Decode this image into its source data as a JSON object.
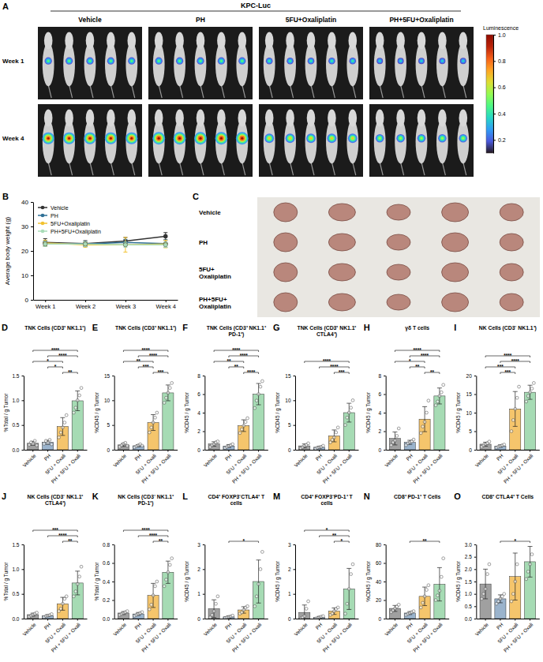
{
  "imaging": {
    "panel": "A",
    "header": "KPC-Luc",
    "groups": [
      "Vehicle",
      "PH",
      "5FU+Oxaliplatin",
      "PH+5FU+Oxaliplatin"
    ],
    "rows": [
      "Week 1",
      "Week 4"
    ],
    "signal": [
      [
        0.5,
        0.5,
        0.45,
        0.4
      ],
      [
        0.95,
        1.0,
        0.7,
        0.6
      ]
    ],
    "colorbar": {
      "title": "Luminescence",
      "lim": [
        0.1,
        1.0
      ],
      "ticks": [
        0.2,
        0.4,
        0.6,
        0.8,
        {
          "value": 1,
          "label": "1.0"
        }
      ]
    }
  },
  "tumor_photos": {
    "panel": "C",
    "rows": [
      "Vehicle",
      "PH",
      "5FU+ Oxaliplatin",
      "PH+5FU+ Oxaliplatin"
    ]
  },
  "chart_data": [
    {
      "panel": "B",
      "type": "line",
      "y_label": "Average body weight (g)",
      "categories": [
        "Week 1",
        "Week 2",
        "Week 3",
        "Week 4"
      ],
      "ylim": [
        0,
        40
      ],
      "yticks": [
        0,
        10,
        20,
        30,
        40
      ],
      "legend": "top-left",
      "marker": "circle",
      "series": [
        {
          "name": "Vehicle",
          "color": "#333333",
          "values": [
            23.5,
            23.0,
            24.0,
            26.0
          ],
          "errors": [
            1.5,
            1.2,
            1.5,
            1.5
          ]
        },
        {
          "name": "PH",
          "color": "#2f7096",
          "values": [
            23.0,
            22.8,
            23.5,
            23.0
          ],
          "errors": [
            1.0,
            1.0,
            1.2,
            1.5
          ]
        },
        {
          "name": "5FU+Oxaliplatin",
          "color": "#f2c230",
          "values": [
            23.2,
            22.5,
            22.5,
            22.8
          ],
          "errors": [
            1.2,
            1.0,
            3.0,
            1.5
          ]
        },
        {
          "name": "PH+5FU+Oxaliplatin",
          "color": "#a9dcb8",
          "values": [
            22.8,
            22.8,
            22.5,
            22.5
          ],
          "errors": [
            1.0,
            1.0,
            1.0,
            1.0
          ]
        }
      ]
    },
    {
      "panel": "D",
      "type": "bar",
      "title": "TNK Cells (CD3⁺ NK1.1⁺)",
      "y_label": "%Total / g Tumor",
      "categories": [
        "Vehicle",
        "PH",
        "5FU + Oxali",
        "PH + 5FU + Oxali"
      ],
      "colors": [
        "#a0a0a0",
        "#9ab3cc",
        "#f5c56c",
        "#a6dbb4"
      ],
      "values": [
        0.13,
        0.15,
        0.47,
        0.99
      ],
      "errors": [
        0.04,
        0.04,
        0.18,
        0.2
      ],
      "points": [
        [
          0.1,
          0.15,
          0.12,
          0.18,
          0.09
        ],
        [
          0.12,
          0.18,
          0.14,
          0.2,
          0.11
        ],
        [
          0.25,
          0.35,
          0.45,
          0.55,
          0.7
        ],
        [
          0.75,
          0.85,
          1.0,
          1.1,
          1.25
        ]
      ],
      "ylim": [
        0,
        1.5
      ],
      "yticks": [
        {
          "value": 0,
          "label": "0.0"
        },
        0.5,
        {
          "value": 1,
          "label": "1.0"
        },
        1.5
      ],
      "significance": [
        {
          "from": 2,
          "to": 3,
          "label": "**"
        },
        {
          "from": 1,
          "to": 2,
          "label": "*"
        },
        {
          "from": 0,
          "to": 2,
          "label": "*"
        },
        {
          "from": 1,
          "to": 3,
          "label": "****"
        },
        {
          "from": 0,
          "to": 3,
          "label": "****"
        }
      ]
    },
    {
      "panel": "E",
      "type": "bar",
      "title": "TNK Cells (CD3⁺ NK1.1⁺)",
      "y_label": "%CD45 / g Tumor",
      "categories": [
        "Vehicle",
        "PH",
        "5FU + Oxali",
        "PH + 5FU + Oxali"
      ],
      "colors": [
        "#a0a0a0",
        "#9ab3cc",
        "#f5c56c",
        "#a6dbb4"
      ],
      "values": [
        0.98,
        0.8,
        5.5,
        11.5
      ],
      "errors": [
        0.32,
        0.22,
        1.6,
        1.6
      ],
      "points": [
        [
          0.6,
          0.9,
          1.2,
          1.4,
          0.8
        ],
        [
          0.5,
          0.7,
          0.9,
          1.1,
          0.8
        ],
        [
          3.5,
          4.5,
          5.5,
          6.5,
          7.5
        ],
        [
          9.5,
          10.5,
          11.5,
          12.5,
          13.5
        ]
      ],
      "ylim": [
        0,
        15
      ],
      "yticks": [
        0,
        5,
        10,
        15
      ],
      "significance": [
        {
          "from": 2,
          "to": 3,
          "label": "***"
        },
        {
          "from": 1,
          "to": 2,
          "label": "***"
        },
        {
          "from": 0,
          "to": 2,
          "label": "**"
        },
        {
          "from": 1,
          "to": 3,
          "label": "****"
        },
        {
          "from": 0,
          "to": 3,
          "label": "****"
        }
      ]
    },
    {
      "panel": "F",
      "type": "bar",
      "title": "TNK Cells (CD3⁺ NK1.1⁺ PD-1⁺)",
      "y_label": "%CD45 / g Tumor",
      "categories": [
        "Vehicle",
        "PH",
        "5FU + Oxali",
        "PH + 5FU + Oxali"
      ],
      "colors": [
        "#a0a0a0",
        "#9ab3cc",
        "#f5c56c",
        "#a6dbb4"
      ],
      "values": [
        0.62,
        0.4,
        2.6,
        6.0
      ],
      "errors": [
        0.24,
        0.16,
        0.63,
        1.15
      ],
      "points": [
        [
          0.3,
          0.5,
          0.6,
          0.8,
          0.9
        ],
        [
          0.2,
          0.3,
          0.4,
          0.5,
          0.6
        ],
        [
          1.8,
          2.2,
          2.6,
          3.0,
          3.4
        ],
        [
          4.5,
          5.3,
          6.0,
          6.8,
          7.4
        ]
      ],
      "ylim": [
        0,
        8
      ],
      "yticks": [
        0,
        2,
        4,
        6,
        8
      ],
      "significance": [
        {
          "from": 2,
          "to": 3,
          "label": "****"
        },
        {
          "from": 1,
          "to": 2,
          "label": "**"
        },
        {
          "from": 0,
          "to": 2,
          "label": "**"
        },
        {
          "from": 1,
          "to": 3,
          "label": "****"
        },
        {
          "from": 0,
          "to": 3,
          "label": "****"
        }
      ]
    },
    {
      "panel": "G",
      "type": "bar",
      "title": "TNK Cells (CD3⁺ NK1.1⁺ CTLA4⁺)",
      "y_label": "%CD45 / g Tumor",
      "categories": [
        "Vehicle",
        "PH",
        "5FU + Oxali",
        "PH + 5FU + Oxali"
      ],
      "colors": [
        "#a0a0a0",
        "#9ab3cc",
        "#f5c56c",
        "#a6dbb4"
      ],
      "values": [
        0.78,
        0.5,
        2.8,
        7.5
      ],
      "errors": [
        0.39,
        0.22,
        1.2,
        1.9
      ],
      "points": [
        [
          0.3,
          0.5,
          0.8,
          1.0,
          1.3
        ],
        [
          0.2,
          0.4,
          0.5,
          0.6,
          0.8
        ],
        [
          1.5,
          2.0,
          2.5,
          3.5,
          4.5
        ],
        [
          5.0,
          6.5,
          7.5,
          8.5,
          10.0
        ]
      ],
      "ylim": [
        0,
        15
      ],
      "yticks": [
        0,
        5,
        10,
        15
      ],
      "significance": [
        {
          "from": 2,
          "to": 3,
          "label": "***"
        },
        {
          "from": 1,
          "to": 3,
          "label": "****"
        },
        {
          "from": 0,
          "to": 3,
          "label": "****"
        }
      ]
    },
    {
      "panel": "H",
      "type": "bar",
      "title": "γδ T cells",
      "y_label": "%CD45 / g Tumor",
      "categories": [
        "Vehicle",
        "PH",
        "5FU + Oxali",
        "PH + 5FU + Oxali"
      ],
      "colors": [
        "#a0a0a0",
        "#9ab3cc",
        "#f5c56c",
        "#a6dbb4"
      ],
      "values": [
        1.22,
        0.8,
        3.3,
        5.8
      ],
      "errors": [
        0.7,
        0.22,
        1.35,
        0.86
      ],
      "points": [
        [
          0.5,
          0.8,
          1.0,
          1.5,
          2.3
        ],
        [
          0.5,
          0.7,
          0.8,
          0.9,
          1.1
        ],
        [
          1.8,
          2.5,
          3.0,
          4.0,
          5.3
        ],
        [
          4.8,
          5.2,
          5.8,
          6.2,
          7.0
        ]
      ],
      "ylim": [
        0,
        8
      ],
      "yticks": [
        0,
        2,
        4,
        6,
        8
      ],
      "significance": [
        {
          "from": 2,
          "to": 3,
          "label": "**"
        },
        {
          "from": 1,
          "to": 2,
          "label": "**"
        },
        {
          "from": 0,
          "to": 2,
          "label": "*"
        },
        {
          "from": 1,
          "to": 3,
          "label": "****"
        },
        {
          "from": 0,
          "to": 3,
          "label": "****"
        }
      ]
    },
    {
      "panel": "I",
      "type": "bar",
      "title": "NK Cells (CD3⁻ NK1.1⁺)",
      "y_label": "%CD45 / g Tumor",
      "categories": [
        "Vehicle",
        "PH",
        "5FU + Oxali",
        "PH + 5FU + Oxali"
      ],
      "colors": [
        "#a0a0a0",
        "#9ab3cc",
        "#f5c56c",
        "#a6dbb4"
      ],
      "values": [
        1.5,
        1.0,
        11.0,
        15.5
      ],
      "errors": [
        0.53,
        0.32,
        4.7,
        1.9
      ],
      "points": [
        [
          0.8,
          1.2,
          1.5,
          1.8,
          2.2
        ],
        [
          0.6,
          0.8,
          1.0,
          1.2,
          1.4
        ],
        [
          5,
          8,
          11,
          14,
          17
        ],
        [
          13,
          14.5,
          15.5,
          16.5,
          18
        ]
      ],
      "ylim": [
        0,
        20
      ],
      "yticks": [
        0,
        5,
        10,
        15,
        20
      ],
      "significance": [
        {
          "from": 1,
          "to": 2,
          "label": "***"
        },
        {
          "from": 0,
          "to": 2,
          "label": "***"
        },
        {
          "from": 1,
          "to": 3,
          "label": "****"
        },
        {
          "from": 0,
          "to": 3,
          "label": "****"
        }
      ]
    },
    {
      "panel": "J",
      "type": "bar",
      "title": "NK Cells (CD3⁻ NK1.1⁺ CTLA4⁺)",
      "y_label": "%Total / g Tumor",
      "categories": [
        "Vehicle",
        "PH",
        "5FU + Oxali",
        "PH + 5FU + Oxali"
      ],
      "colors": [
        "#a0a0a0",
        "#9ab3cc",
        "#f5c56c",
        "#a6dbb4"
      ],
      "values": [
        0.08,
        0.06,
        0.3,
        0.72
      ],
      "errors": [
        0.03,
        0.02,
        0.13,
        0.24
      ],
      "points": [
        [
          0.04,
          0.06,
          0.08,
          0.1,
          0.12
        ],
        [
          0.03,
          0.05,
          0.06,
          0.07,
          0.09
        ],
        [
          0.15,
          0.2,
          0.3,
          0.4,
          0.45
        ],
        [
          0.45,
          0.55,
          0.7,
          0.85,
          1.05
        ]
      ],
      "ylim": [
        0,
        1.5
      ],
      "yticks": [
        {
          "value": 0,
          "label": "0.0"
        },
        0.5,
        {
          "value": 1,
          "label": "1.0"
        },
        1.5
      ],
      "significance": [
        {
          "from": 2,
          "to": 3,
          "label": "**"
        },
        {
          "from": 1,
          "to": 3,
          "label": "****"
        },
        {
          "from": 0,
          "to": 3,
          "label": "***"
        }
      ]
    },
    {
      "panel": "K",
      "type": "bar",
      "title": "NK Cells (CD3⁻ NK1.1⁺ PD-1⁺)",
      "y_label": "%Total / g Tumor",
      "categories": [
        "Vehicle",
        "PH",
        "5FU + Oxali",
        "PH + 5FU + Oxali"
      ],
      "colors": [
        "#a0a0a0",
        "#9ab3cc",
        "#f5c56c",
        "#a6dbb4"
      ],
      "values": [
        0.06,
        0.05,
        0.25,
        0.5
      ],
      "errors": [
        0.016,
        0.016,
        0.13,
        0.12
      ],
      "points": [
        [
          0.04,
          0.05,
          0.06,
          0.07,
          0.08
        ],
        [
          0.03,
          0.04,
          0.05,
          0.06,
          0.07
        ],
        [
          0.1,
          0.15,
          0.25,
          0.35,
          0.4
        ],
        [
          0.35,
          0.42,
          0.5,
          0.58,
          0.65
        ]
      ],
      "ylim": [
        0,
        0.8
      ],
      "yticks": [
        {
          "value": 0,
          "label": "0.0"
        },
        0.2,
        0.4,
        0.6,
        0.8
      ],
      "significance": [
        {
          "from": 2,
          "to": 3,
          "label": "**"
        },
        {
          "from": 1,
          "to": 3,
          "label": "****"
        },
        {
          "from": 0,
          "to": 3,
          "label": "****"
        }
      ]
    },
    {
      "panel": "L",
      "type": "bar",
      "title": "CD4⁺ FOXP3⁻CTLA4⁺ T cells",
      "y_label": "%CD45 / g Tumor",
      "categories": [
        "Vehicle",
        "PH",
        "5FU + Oxali",
        "PH + 5FU + Oxali"
      ],
      "colors": [
        "#a0a0a0",
        "#9ab3cc",
        "#f5c56c",
        "#a6dbb4"
      ],
      "values": [
        0.4,
        0.07,
        0.35,
        1.5
      ],
      "errors": [
        0.36,
        0.04,
        0.13,
        0.87
      ],
      "points": [
        [
          0.05,
          0.15,
          0.3,
          0.6,
          0.9
        ],
        [
          0.02,
          0.05,
          0.07,
          0.09,
          0.12
        ],
        [
          0.2,
          0.25,
          0.35,
          0.45,
          0.5
        ],
        [
          0.5,
          0.9,
          1.4,
          2.0,
          2.7
        ]
      ],
      "ylim": [
        0,
        3
      ],
      "yticks": [
        0,
        1,
        2,
        3
      ],
      "significance": [
        {
          "from": 1,
          "to": 3,
          "label": "*"
        }
      ]
    },
    {
      "panel": "M",
      "type": "bar",
      "title": "CD4⁺ FOXP3⁻PD-1⁺ T cells",
      "y_label": "%CD45 / g Tumor",
      "categories": [
        "Vehicle",
        "PH",
        "5FU + Oxali",
        "PH + 5FU + Oxali"
      ],
      "colors": [
        "#a0a0a0",
        "#9ab3cc",
        "#f5c56c",
        "#a6dbb4"
      ],
      "values": [
        0.25,
        0.05,
        0.3,
        1.2
      ],
      "errors": [
        0.3,
        0.04,
        0.13,
        0.83
      ],
      "points": [
        [
          0.0,
          0.05,
          0.1,
          0.4,
          0.7
        ],
        [
          0.0,
          0.02,
          0.05,
          0.08,
          0.1
        ],
        [
          0.15,
          0.2,
          0.3,
          0.4,
          0.45
        ],
        [
          0.2,
          0.6,
          1.2,
          1.8,
          2.2
        ]
      ],
      "ylim": [
        0,
        3
      ],
      "yticks": [
        0,
        1,
        2,
        3
      ],
      "significance": [
        {
          "from": 2,
          "to": 3,
          "label": "*"
        },
        {
          "from": 1,
          "to": 3,
          "label": "**"
        },
        {
          "from": 0,
          "to": 3,
          "label": "*"
        }
      ]
    },
    {
      "panel": "N",
      "type": "bar",
      "title": "CD8⁺ PD-1⁺ T Cells",
      "y_label": "%CD45 / g Tumor",
      "categories": [
        "Vehicle",
        "PH",
        "5FU + Oxali",
        "PH + 5FU + Oxali"
      ],
      "colors": [
        "#a0a0a0",
        "#9ab3cc",
        "#f5c56c",
        "#a6dbb4"
      ],
      "values": [
        11,
        6,
        24,
        37
      ],
      "errors": [
        3.2,
        1.6,
        10,
        18
      ],
      "points": [
        [
          7,
          9,
          11,
          13,
          15
        ],
        [
          4,
          5,
          6,
          7,
          8
        ],
        [
          12,
          17,
          24,
          31,
          36
        ],
        [
          20,
          25,
          30,
          45,
          65
        ]
      ],
      "ylim": [
        0,
        80
      ],
      "yticks": [
        0,
        20,
        40,
        60,
        80
      ],
      "significance": [
        {
          "from": 1,
          "to": 3,
          "label": "**"
        }
      ]
    },
    {
      "panel": "O",
      "type": "bar",
      "title": "CD8⁺ CTLA4⁺ T Cells",
      "y_label": "%CD45 / g Tumor",
      "categories": [
        "Vehicle",
        "PH",
        "5FU + Oxali",
        "PH + 5FU + Oxali"
      ],
      "colors": [
        "#a0a0a0",
        "#9ab3cc",
        "#f5c56c",
        "#a6dbb4"
      ],
      "values": [
        1.4,
        0.8,
        1.7,
        2.3
      ],
      "errors": [
        0.6,
        0.16,
        0.95,
        0.62
      ],
      "points": [
        [
          0.8,
          1.0,
          1.2,
          1.8,
          2.2
        ],
        [
          0.6,
          0.7,
          0.8,
          0.9,
          1.0
        ],
        [
          0.7,
          1.0,
          1.5,
          2.2,
          3.1
        ],
        [
          1.6,
          1.9,
          2.2,
          2.6,
          3.2
        ]
      ],
      "ylim": [
        0,
        3
      ],
      "yticks": [
        {
          "value": 0,
          "label": "0.0"
        },
        0.5,
        {
          "value": 1,
          "label": "1.0"
        },
        1.5,
        {
          "value": 2,
          "label": "2.0"
        },
        2.5,
        {
          "value": 3,
          "label": "3.0"
        }
      ],
      "significance": [
        {
          "from": 1,
          "to": 3,
          "label": "*"
        }
      ]
    }
  ]
}
